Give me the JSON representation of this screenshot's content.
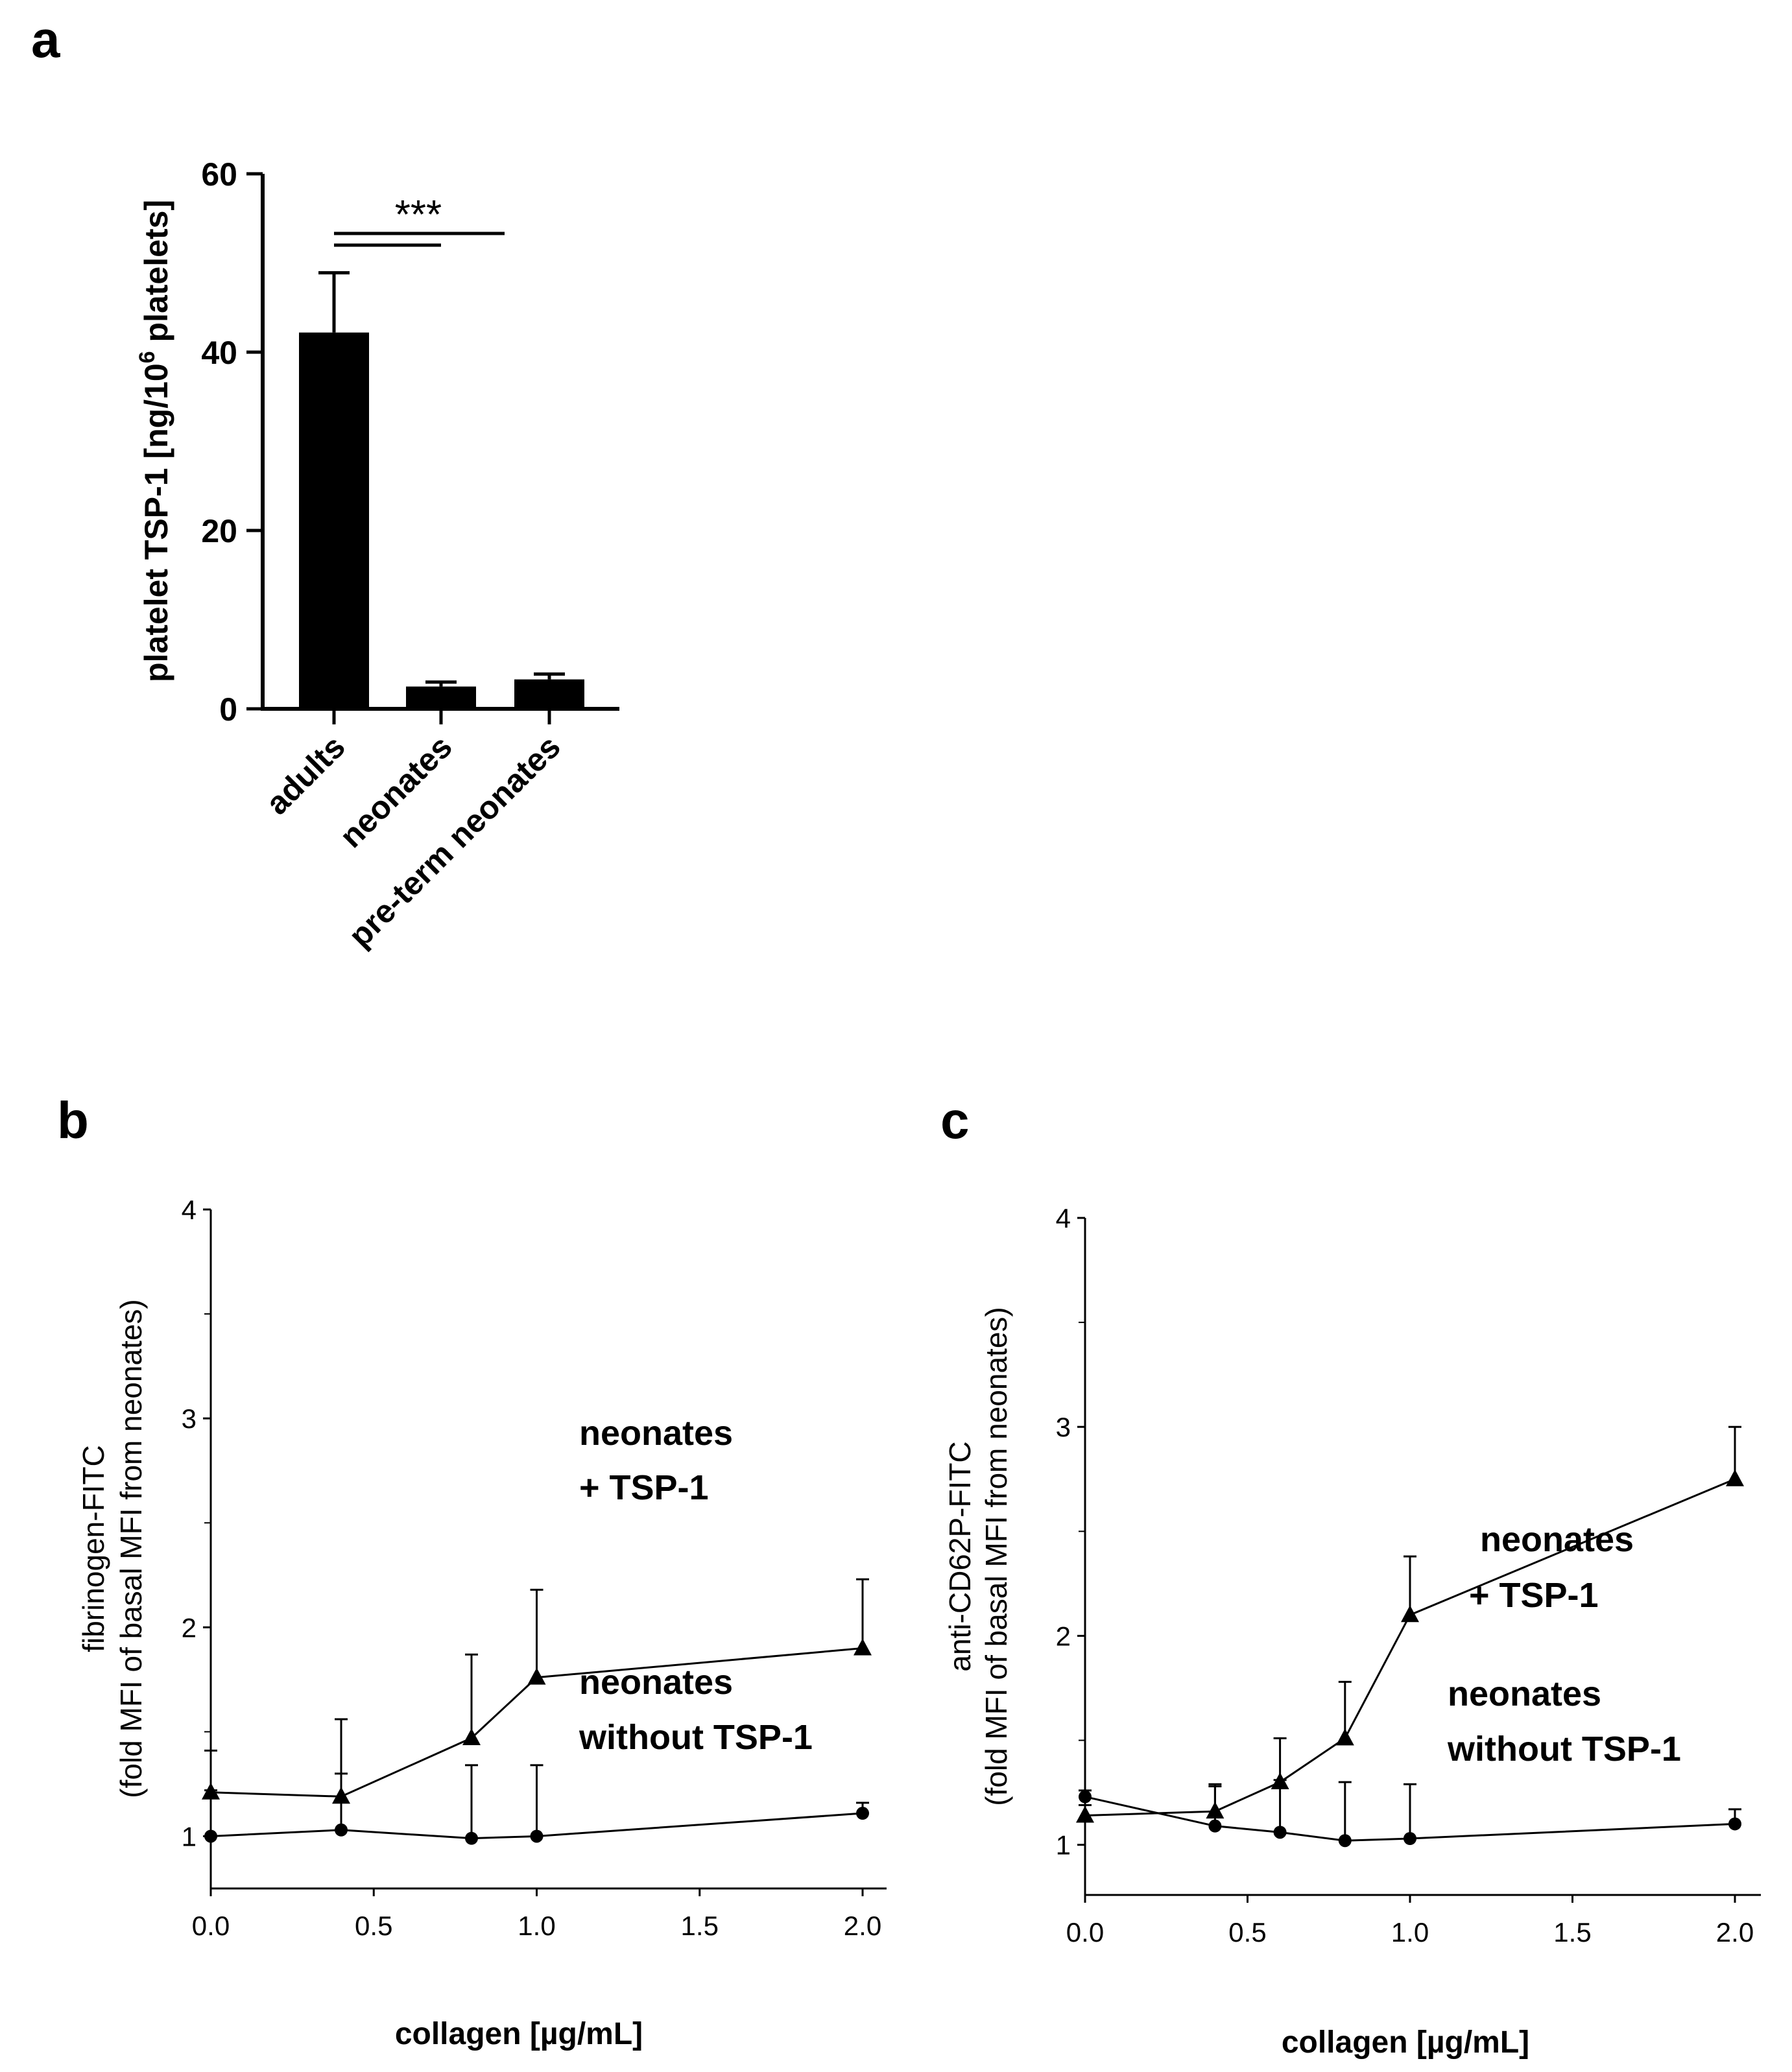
{
  "chart_data": [
    {
      "type": "bar",
      "panel": "a",
      "ylabel_pre": "platelet TSP-1 [ng/10",
      "ylabel_sup": "6",
      "ylabel_post": " platelets]",
      "ylim": [
        0,
        60
      ],
      "yticks": [
        "0",
        "20",
        "40",
        "60"
      ],
      "categories": [
        "adults",
        "neonates",
        "pre-term neonates"
      ],
      "values": [
        42.2,
        2.5,
        3.3
      ],
      "errors": [
        6.7,
        0.5,
        0.6
      ],
      "significance": "***"
    },
    {
      "type": "line",
      "panel": "b",
      "ylabel_line1": "fibrinogen-FITC",
      "ylabel_line2": "(fold MFI of basal MFI from neonates)",
      "xlabel": "collagen [µg/mL]",
      "xlim": [
        0,
        2.0
      ],
      "ylim": [
        0.75,
        4
      ],
      "xticks": [
        "0.0",
        "0.5",
        "1.0",
        "1.5",
        "2.0"
      ],
      "yticks": [
        "1",
        "2",
        "3",
        "4"
      ],
      "series": [
        {
          "name": "neonates + TSP-1",
          "label_line1": "neonates",
          "label_line2": "+ TSP-1",
          "marker": "triangle",
          "x": [
            0,
            0.4,
            0.8,
            1.0,
            2.0
          ],
          "y": [
            1.21,
            1.19,
            1.47,
            1.76,
            1.9
          ],
          "err": [
            0.2,
            0.37,
            0.4,
            0.42,
            0.33
          ]
        },
        {
          "name": "neonates without TSP-1",
          "label_line1": "neonates",
          "label_line2": "without TSP-1",
          "marker": "circle",
          "x": [
            0,
            0.4,
            0.8,
            1.0,
            2.0
          ],
          "y": [
            1.0,
            1.03,
            0.99,
            1.0,
            1.11
          ],
          "err": [
            0.22,
            0.27,
            0.35,
            0.34,
            0.05
          ]
        }
      ]
    },
    {
      "type": "line",
      "panel": "c",
      "ylabel_line1": "anti-CD62P-FITC",
      "ylabel_line2": "(fold MFI of basal MFI from neonates)",
      "xlabel": "collagen [µg/mL]",
      "xlim": [
        0,
        2.0
      ],
      "ylim": [
        0.76,
        4
      ],
      "xticks": [
        "0.0",
        "0.5",
        "1.0",
        "1.5",
        "2.0"
      ],
      "yticks": [
        "1",
        "2",
        "3",
        "4"
      ],
      "series": [
        {
          "name": "neonates + TSP-1",
          "label_line1": "neonates",
          "label_line2": "+ TSP-1",
          "marker": "triangle",
          "x": [
            0,
            0.4,
            0.6,
            0.8,
            1.0,
            2.0
          ],
          "y": [
            1.14,
            1.16,
            1.3,
            1.51,
            2.1,
            2.75
          ],
          "err": [
            0.05,
            0.12,
            0.21,
            0.27,
            0.28,
            0.25
          ]
        },
        {
          "name": "neonates without TSP-1",
          "label_line1": "neonates",
          "label_line2": "without TSP-1",
          "marker": "circle",
          "x": [
            0,
            0.4,
            0.6,
            0.8,
            1.0,
            2.0
          ],
          "y": [
            1.23,
            1.09,
            1.06,
            1.02,
            1.03,
            1.1
          ],
          "err": [
            0.03,
            0.2,
            0.25,
            0.28,
            0.26,
            0.07
          ]
        }
      ]
    }
  ]
}
